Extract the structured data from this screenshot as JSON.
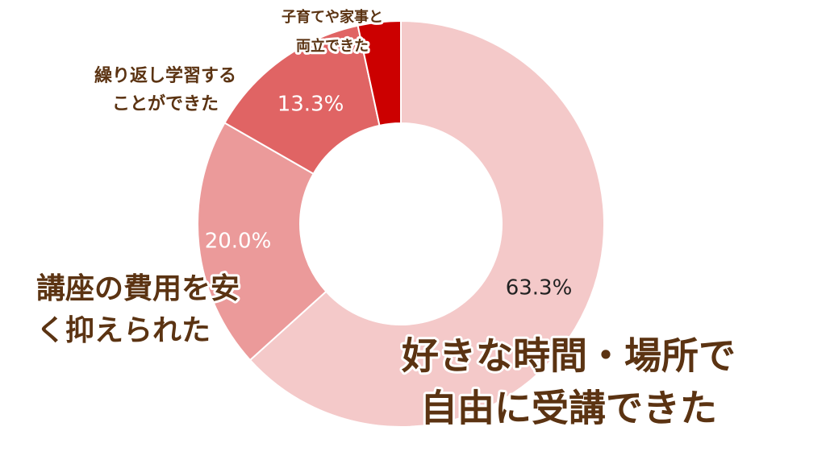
{
  "chart_data": {
    "type": "donut",
    "categories": [
      [
        "好きな時間・場所で",
        "自由に受講できた"
      ],
      [
        "講座の費用を安",
        "く抑えられた"
      ],
      [
        "繰り返し学習する",
        "ことができた"
      ],
      [
        "子育てや家事と",
        "両立できた"
      ]
    ],
    "values": [
      63.3,
      20.0,
      13.3,
      3.4
    ],
    "value_labels": [
      "63.3%",
      "20.0%",
      "13.3%",
      null
    ],
    "colors": [
      "#f4c9c9",
      "#eb9a9a",
      "#e06464",
      "#cc0000"
    ]
  }
}
